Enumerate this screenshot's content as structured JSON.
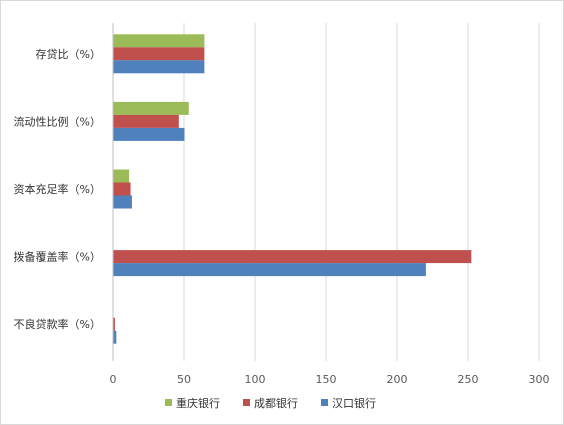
{
  "chart_data": {
    "type": "bar",
    "orientation": "horizontal",
    "categories": [
      "存贷比（%）",
      "流动性比例（%）",
      "资本充足率（%）",
      "拨备覆盖率（%）",
      "不良贷款率（%）"
    ],
    "series": [
      {
        "name": "重庆银行",
        "color": "#9bbb59",
        "values": [
          64,
          53,
          11,
          0,
          0
        ]
      },
      {
        "name": "成都银行",
        "color": "#c0504d",
        "values": [
          64,
          46,
          12,
          252,
          1
        ]
      },
      {
        "name": "汉口银行",
        "color": "#4f81bd",
        "values": [
          64,
          50,
          13,
          220,
          2
        ]
      }
    ],
    "xlim": [
      0,
      300
    ],
    "xticks": [
      0,
      50,
      100,
      150,
      200,
      250,
      300
    ],
    "grid": "vertical",
    "legend": "bottom",
    "title": "",
    "xlabel": "",
    "ylabel": ""
  }
}
